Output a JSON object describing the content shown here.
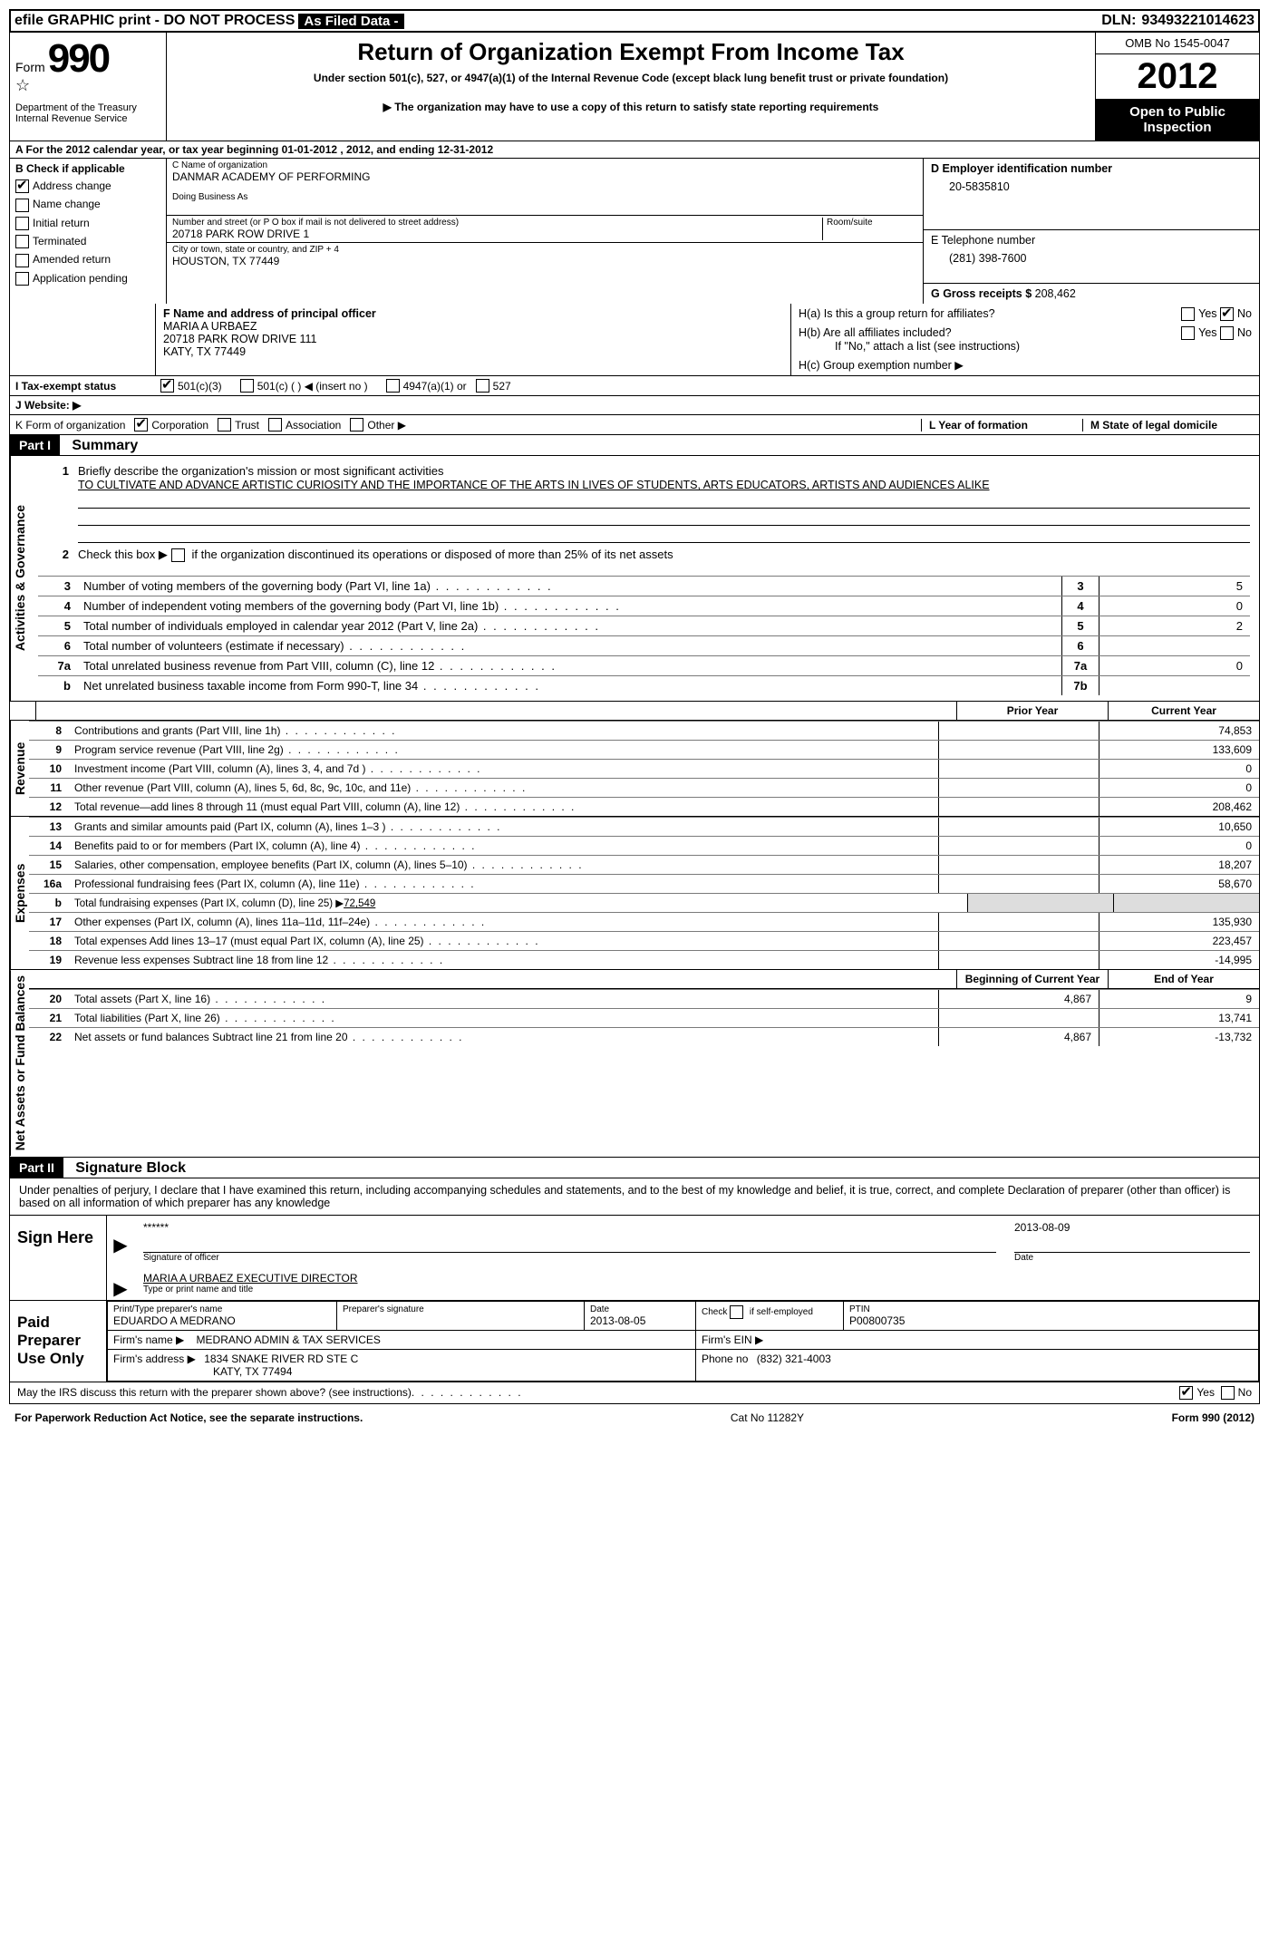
{
  "top_bar": {
    "efile": "efile GRAPHIC print - DO NOT PROCESS",
    "as_filed": "As Filed Data -",
    "dln_label": "DLN:",
    "dln": "93493221014623"
  },
  "header": {
    "form_label": "Form",
    "form_number": "990",
    "dept": "Department of the Treasury",
    "irs": "Internal Revenue Service",
    "title": "Return of Organization Exempt From Income Tax",
    "subtitle1": "Under section 501(c), 527, or 4947(a)(1) of the Internal Revenue Code (except black lung benefit trust or private foundation)",
    "subtitle2": "▶ The organization may have to use a copy of this return to satisfy state reporting requirements",
    "omb": "OMB No 1545-0047",
    "year": "2012",
    "open": "Open to Public Inspection"
  },
  "line_a": "A  For the 2012 calendar year, or tax year beginning 01-01-2012    , 2012, and ending 12-31-2012",
  "section_b": {
    "title": "B  Check if applicable",
    "items": [
      {
        "label": "Address change",
        "checked": true
      },
      {
        "label": "Name change",
        "checked": false
      },
      {
        "label": "Initial return",
        "checked": false
      },
      {
        "label": "Terminated",
        "checked": false
      },
      {
        "label": "Amended return",
        "checked": false
      },
      {
        "label": "Application pending",
        "checked": false
      }
    ]
  },
  "section_c": {
    "name_label": "C Name of organization",
    "name": "DANMAR ACADEMY OF PERFORMING",
    "dba_label": "Doing Business As",
    "addr_label": "Number and street (or P O  box if mail is not delivered to street address)",
    "room_label": "Room/suite",
    "addr": "20718 PARK ROW DRIVE 1",
    "city_label": "City or town, state or country, and ZIP + 4",
    "city": "HOUSTON, TX  77449"
  },
  "section_d": {
    "label": "D Employer identification number",
    "value": "20-5835810"
  },
  "section_e": {
    "label": "E Telephone number",
    "value": "(281) 398-7600"
  },
  "section_g": {
    "label": "G Gross receipts $",
    "value": "208,462"
  },
  "section_f": {
    "label": "F   Name and address of principal officer",
    "name": "MARIA A URBAEZ",
    "addr1": "20718 PARK ROW DRIVE 111",
    "addr2": "KATY, TX  77449"
  },
  "section_h": {
    "ha": "H(a)  Is this a group return for affiliates?",
    "hb": "H(b)  Are all affiliates included?",
    "hb_note": "If \"No,\" attach a list  (see instructions)",
    "hc": "H(c)   Group exemption number ▶"
  },
  "row_i": {
    "label": "I   Tax-exempt status",
    "opts": [
      "501(c)(3)",
      "501(c) (   ) ◀ (insert no )",
      "4947(a)(1) or",
      "527"
    ]
  },
  "row_j": {
    "label": "J   Website: ▶"
  },
  "row_k": {
    "k": "K Form of organization",
    "opts": [
      "Corporation",
      "Trust",
      "Association",
      "Other ▶"
    ],
    "l": "L Year of formation",
    "m": "M State of legal domicile"
  },
  "part1": {
    "header": "Part I",
    "title": "Summary",
    "gov_label": "Activities & Governance",
    "line1_label": "Briefly describe the organization's mission or most significant activities",
    "mission": "TO CULTIVATE AND ADVANCE ARTISTIC CURIOSITY AND THE IMPORTANCE OF THE ARTS IN LIVES OF STUDENTS, ARTS EDUCATORS, ARTISTS AND AUDIENCES ALIKE",
    "line2": "Check this box ▶      if the organization discontinued its operations or disposed of more than 25% of its net assets",
    "lines_3_7": [
      {
        "n": "3",
        "t": "Number of voting members of the governing body (Part VI, line 1a)",
        "box": "3",
        "val": "5"
      },
      {
        "n": "4",
        "t": "Number of independent voting members of the governing body (Part VI, line 1b)",
        "box": "4",
        "val": "0"
      },
      {
        "n": "5",
        "t": "Total number of individuals employed in calendar year 2012 (Part V, line 2a)",
        "box": "5",
        "val": "2"
      },
      {
        "n": "6",
        "t": "Total number of volunteers (estimate if necessary)",
        "box": "6",
        "val": ""
      },
      {
        "n": "7a",
        "t": "Total unrelated business revenue from Part VIII, column (C), line 12",
        "box": "7a",
        "val": "0"
      },
      {
        "n": "b",
        "t": "Net unrelated business taxable income from Form 990-T, line 34",
        "box": "7b",
        "val": ""
      }
    ],
    "col_headers": {
      "prior": "Prior Year",
      "current": "Current Year"
    },
    "revenue_label": "Revenue",
    "revenue": [
      {
        "n": "8",
        "t": "Contributions and grants (Part VIII, line 1h)",
        "prior": "",
        "cur": "74,853"
      },
      {
        "n": "9",
        "t": "Program service revenue (Part VIII, line 2g)",
        "prior": "",
        "cur": "133,609"
      },
      {
        "n": "10",
        "t": "Investment income (Part VIII, column (A), lines 3, 4, and 7d )",
        "prior": "",
        "cur": "0"
      },
      {
        "n": "11",
        "t": "Other revenue (Part VIII, column (A), lines 5, 6d, 8c, 9c, 10c, and 11e)",
        "prior": "",
        "cur": "0"
      },
      {
        "n": "12",
        "t": "Total revenue—add lines 8 through 11 (must equal Part VIII, column (A), line 12)",
        "prior": "",
        "cur": "208,462"
      }
    ],
    "expenses_label": "Expenses",
    "expenses": [
      {
        "n": "13",
        "t": "Grants and similar amounts paid (Part IX, column (A), lines 1–3 )",
        "prior": "",
        "cur": "10,650"
      },
      {
        "n": "14",
        "t": "Benefits paid to or for members (Part IX, column (A), line 4)",
        "prior": "",
        "cur": "0"
      },
      {
        "n": "15",
        "t": "Salaries, other compensation, employee benefits (Part IX, column (A), lines 5–10)",
        "prior": "",
        "cur": "18,207"
      },
      {
        "n": "16a",
        "t": "Professional fundraising fees (Part IX, column (A), line 11e)",
        "prior": "",
        "cur": "58,670"
      },
      {
        "n": "b",
        "t": "Total fundraising expenses (Part IX, column (D), line 25) ▶",
        "inline": "72,549"
      },
      {
        "n": "17",
        "t": "Other expenses (Part IX, column (A), lines 11a–11d, 11f–24e)",
        "prior": "",
        "cur": "135,930"
      },
      {
        "n": "18",
        "t": "Total expenses  Add lines 13–17 (must equal Part IX, column (A), line 25)",
        "prior": "",
        "cur": "223,457"
      },
      {
        "n": "19",
        "t": "Revenue less expenses  Subtract line 18 from line 12",
        "prior": "",
        "cur": "-14,995"
      }
    ],
    "net_label": "Net Assets or Fund Balances",
    "net_headers": {
      "beg": "Beginning of Current Year",
      "end": "End of Year"
    },
    "net": [
      {
        "n": "20",
        "t": "Total assets (Part X, line 16)",
        "beg": "4,867",
        "end": "9"
      },
      {
        "n": "21",
        "t": "Total liabilities (Part X, line 26)",
        "beg": "",
        "end": "13,741"
      },
      {
        "n": "22",
        "t": "Net assets or fund balances  Subtract line 21 from line 20",
        "beg": "4,867",
        "end": "-13,732"
      }
    ]
  },
  "part2": {
    "header": "Part II",
    "title": "Signature Block",
    "declaration": "Under penalties of perjury, I declare that I have examined this return, including accompanying schedules and statements, and to the best of my knowledge and belief, it is true, correct, and complete  Declaration of preparer (other than officer) is based on all information of which preparer has any knowledge",
    "sign_here": "Sign Here",
    "sig_stars": "******",
    "sig_officer_label": "Signature of officer",
    "sig_date": "2013-08-09",
    "date_label": "Date",
    "officer_name": "MARIA A URBAEZ EXECUTIVE DIRECTOR",
    "name_label": "Type or print name and title",
    "paid_label": "Paid Preparer Use Only",
    "preparer": {
      "name_label": "Print/Type preparer's name",
      "name": "EDUARDO A MEDRANO",
      "sig_label": "Preparer's signature",
      "date_label": "Date",
      "date": "2013-08-05",
      "check_label": "Check        if self-employed",
      "ptin_label": "PTIN",
      "ptin": "P00800735",
      "firm_name_label": "Firm's name     ▶",
      "firm_name": "MEDRANO ADMIN & TAX SERVICES",
      "firm_ein_label": "Firm's EIN ▶",
      "firm_addr_label": "Firm's address ▶",
      "firm_addr1": "1834 SNAKE RIVER RD STE C",
      "firm_addr2": "KATY, TX  77494",
      "phone_label": "Phone no",
      "phone": "(832) 321-4003"
    },
    "discuss": "May the IRS discuss this return with the preparer shown above? (see instructions)"
  },
  "footer": {
    "left": "For Paperwork Reduction Act Notice, see the separate instructions.",
    "mid": "Cat No  11282Y",
    "right": "Form 990 (2012)"
  }
}
